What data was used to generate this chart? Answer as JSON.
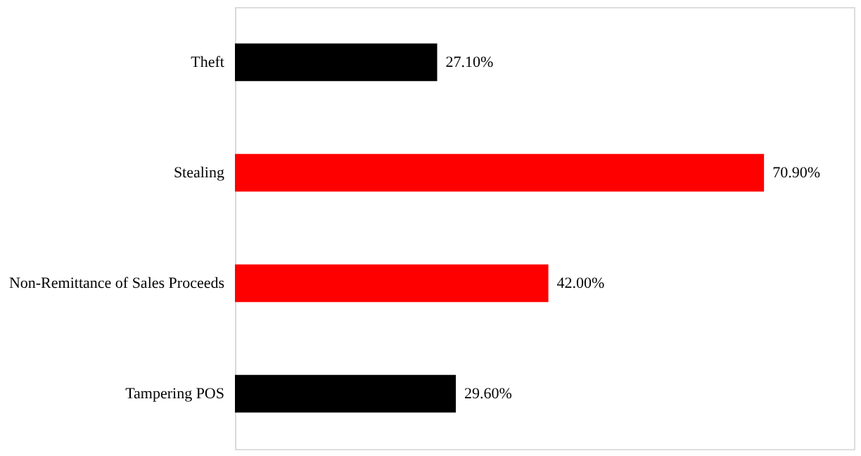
{
  "chart_data": {
    "type": "bar",
    "orientation": "horizontal",
    "categories": [
      "Theft",
      "Stealing",
      "Non-Remittance of Sales Proceeds",
      "Tampering POS"
    ],
    "values": [
      27.1,
      70.9,
      42.0,
      29.6
    ],
    "colors": [
      "#000000",
      "#ff0000",
      "#ff0000",
      "#000000"
    ],
    "value_labels": [
      "27.10%",
      "70.90%",
      "42.00%",
      "29.60%"
    ],
    "tick_labels": "y"
  }
}
